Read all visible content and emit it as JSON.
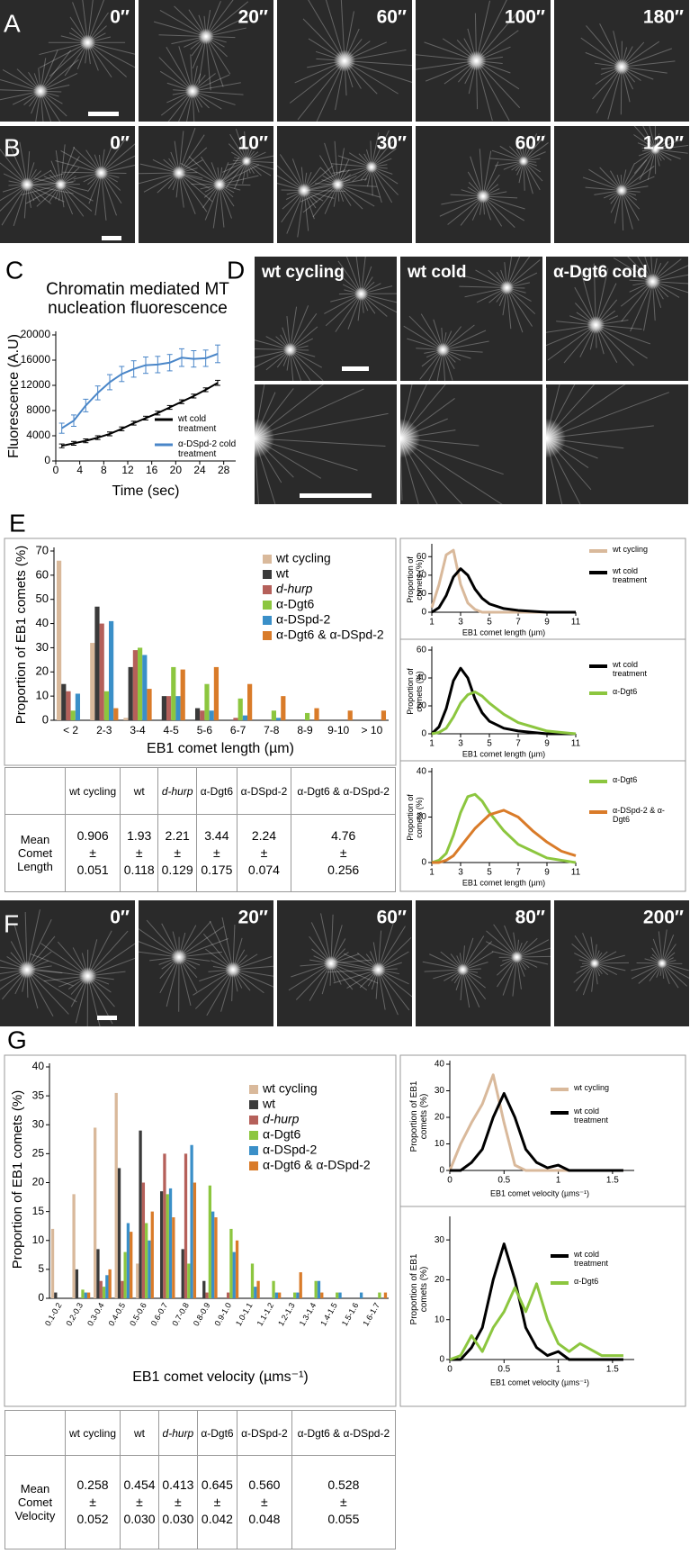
{
  "panel_labels": [
    "A",
    "B",
    "C",
    "D",
    "E",
    "F",
    "G"
  ],
  "timestamps_a": [
    "0″",
    "20″",
    "60″",
    "100″",
    "180″"
  ],
  "timestamps_b": [
    "0″",
    "10″",
    "30″",
    "60″",
    "120″"
  ],
  "timestamps_f": [
    "0″",
    "20″",
    "60″",
    "80″",
    "200″"
  ],
  "panel_d_labels": [
    "wt cycling",
    "wt cold",
    "α-Dgt6 cold"
  ],
  "chart_data": [
    {
      "type": "line",
      "title": "Chromatin mediated MT nucleation fluorescence",
      "x_label": "Time (sec)",
      "y_label": "Fluorescence (A.U)",
      "x": [
        1,
        3,
        5,
        7,
        9,
        11,
        13,
        15,
        17,
        19,
        21,
        23,
        25,
        27
      ],
      "series": [
        {
          "name": "wt cold treatment",
          "color": "#000000",
          "values": [
            2400,
            2800,
            3200,
            3700,
            4300,
            5100,
            6000,
            6800,
            7600,
            8500,
            9400,
            10300,
            11300,
            12400
          ],
          "errors": [
            300,
            300,
            300,
            300,
            300,
            300,
            300,
            300,
            300,
            300,
            300,
            300,
            300,
            400
          ]
        },
        {
          "name": "α-DSpd-2 cold treatment",
          "color": "#4a86c8",
          "values": [
            5200,
            6400,
            8800,
            10800,
            12500,
            13800,
            14600,
            15200,
            15300,
            15600,
            16400,
            16200,
            16300,
            17000
          ],
          "errors": [
            800,
            900,
            1000,
            1100,
            1200,
            1200,
            1300,
            1300,
            1300,
            1300,
            1400,
            1300,
            1300,
            1400
          ]
        }
      ],
      "xlim": [
        0,
        30
      ],
      "xticks": [
        0,
        4,
        8,
        12,
        16,
        20,
        24,
        28
      ],
      "ylim": [
        0,
        20000
      ],
      "yticks": [
        0,
        4000,
        8000,
        12000,
        16000,
        20000
      ]
    },
    {
      "type": "bar",
      "x_label": "EB1 comet length (µm)",
      "y_label": "Proportion of EB1 comets (%)",
      "categories": [
        "< 2",
        "2-3",
        "3-4",
        "4-5",
        "5-6",
        "6-7",
        "7-8",
        "8-9",
        "9-10",
        "> 10"
      ],
      "series": [
        {
          "name": "wt cycling",
          "color": "#d9b99b",
          "values": [
            66,
            32,
            1,
            0,
            0,
            0,
            0,
            0,
            0,
            0
          ]
        },
        {
          "name": "wt",
          "color": "#3a3a3a",
          "values": [
            15,
            47,
            22,
            10,
            5,
            0,
            0,
            0,
            0,
            0
          ]
        },
        {
          "name": "d-hurp",
          "color": "#b5605a",
          "font_style": "italic",
          "values": [
            12,
            40,
            29,
            10,
            4,
            1,
            0,
            0,
            0,
            0
          ]
        },
        {
          "name": "α-Dgt6",
          "color": "#8cc63f",
          "values": [
            4,
            12,
            30,
            22,
            15,
            9,
            4,
            3,
            0,
            0
          ]
        },
        {
          "name": "α-DSpd-2",
          "color": "#3a8fc8",
          "values": [
            11,
            41,
            27,
            10,
            4,
            2,
            1,
            0,
            0,
            0
          ]
        },
        {
          "name": "α-Dgt6 & α-DSpd-2",
          "color": "#d97b29",
          "values": [
            0,
            5,
            13,
            21,
            22,
            15,
            10,
            5,
            4,
            4
          ]
        }
      ],
      "ylim": [
        0,
        70
      ],
      "yticks": [
        0,
        10,
        20,
        30,
        40,
        50,
        60,
        70
      ]
    },
    {
      "type": "line",
      "x_label": "EB1 comet length (µm)",
      "y_label": "Proportion of comets (%)",
      "x": [
        1,
        1.5,
        2,
        2.5,
        3,
        3.5,
        4,
        4.5,
        5,
        6,
        7,
        8,
        9,
        10,
        11
      ],
      "series": [
        {
          "name": "wt cycling",
          "color": "#d9b99b",
          "values": [
            5,
            30,
            62,
            67,
            30,
            10,
            3,
            0,
            0,
            0,
            0,
            0,
            0,
            0,
            0
          ]
        },
        {
          "name": "wt cold treatment",
          "color": "#000000",
          "values": [
            0,
            5,
            18,
            38,
            47,
            40,
            25,
            15,
            9,
            4,
            2,
            1,
            0,
            0,
            0
          ]
        }
      ],
      "xlim": [
        1,
        11
      ],
      "xticks": [
        1,
        3,
        5,
        7,
        9,
        11
      ],
      "ylim": [
        0,
        70
      ],
      "yticks": [
        0,
        20,
        40,
        60
      ]
    },
    {
      "type": "line",
      "x_label": "EB1 comet length (µm)",
      "y_label": "Proportion of comets (%)",
      "x": [
        1,
        1.5,
        2,
        2.5,
        3,
        3.5,
        4,
        4.5,
        5,
        6,
        7,
        8,
        9,
        10,
        11
      ],
      "series": [
        {
          "name": "wt cold treatment",
          "color": "#000000",
          "values": [
            0,
            5,
            18,
            38,
            47,
            40,
            25,
            15,
            9,
            4,
            2,
            1,
            0,
            0,
            0
          ]
        },
        {
          "name": "α-Dgt6",
          "color": "#8cc63f",
          "values": [
            0,
            1,
            4,
            12,
            22,
            28,
            30,
            27,
            22,
            14,
            8,
            5,
            2,
            1,
            0
          ]
        }
      ],
      "xlim": [
        1,
        11
      ],
      "xticks": [
        1,
        3,
        5,
        7,
        9,
        11
      ],
      "ylim": [
        0,
        60
      ],
      "yticks": [
        0,
        20,
        40,
        60
      ]
    },
    {
      "type": "line",
      "x_label": "EB1 comet length (µm)",
      "y_label": "Proportion of comets (%)",
      "x": [
        1,
        1.5,
        2,
        2.5,
        3,
        3.5,
        4,
        4.5,
        5,
        6,
        7,
        8,
        9,
        10,
        11
      ],
      "series": [
        {
          "name": "α-Dgt6",
          "color": "#8cc63f",
          "values": [
            0,
            1,
            4,
            12,
            22,
            29,
            30,
            27,
            22,
            14,
            8,
            5,
            2,
            1,
            0
          ]
        },
        {
          "name": "α-DSpd-2 & α-Dgt6",
          "color": "#d97b29",
          "values": [
            0,
            0,
            1,
            3,
            7,
            11,
            15,
            18,
            21,
            23,
            20,
            14,
            9,
            5,
            3
          ]
        }
      ],
      "xlim": [
        1,
        11
      ],
      "xticks": [
        1,
        3,
        5,
        7,
        9,
        11
      ],
      "ylim": [
        0,
        40
      ],
      "yticks": [
        0,
        20,
        40
      ]
    },
    {
      "type": "bar",
      "x_label": "EB1 comet velocity (µms⁻¹)",
      "y_label": "Proportion of EB1 comets (%)",
      "categories": [
        "0.1-0.2",
        "0.2-0.3",
        "0.3-0.4",
        "0.4-0.5",
        "0.5-0.6",
        "0.6-0.7",
        "0.7-0.8",
        "0.8-0.9",
        "0.9-1.0",
        "1.0-1.1",
        "1.1-1.2",
        "1.2-1.3",
        "1.3-1.4",
        "1.4-1.5",
        "1.5-1.6",
        "1.6-1.7"
      ],
      "series": [
        {
          "name": "wt cycling",
          "color": "#d9b99b",
          "values": [
            12,
            18,
            29.5,
            35.5,
            6,
            0,
            0,
            0,
            0,
            0,
            0,
            0,
            0,
            0,
            0,
            0
          ]
        },
        {
          "name": "wt",
          "color": "#3a3a3a",
          "values": [
            1,
            5,
            8.5,
            22.5,
            29,
            18.5,
            8.5,
            3,
            0,
            0,
            0,
            0,
            0,
            0,
            0,
            0
          ]
        },
        {
          "name": "d-hurp",
          "color": "#b5605a",
          "font_style": "italic",
          "values": [
            0,
            0,
            3,
            3,
            20,
            25,
            25,
            1,
            1,
            0,
            0,
            0,
            0,
            0,
            0,
            0
          ]
        },
        {
          "name": "α-Dgt6",
          "color": "#8cc63f",
          "values": [
            0,
            1.5,
            2,
            8,
            13,
            18,
            6,
            19.5,
            12,
            6,
            3,
            1,
            3,
            1,
            0,
            1
          ]
        },
        {
          "name": "α-DSpd-2",
          "color": "#3a8fc8",
          "values": [
            0,
            1,
            4,
            13,
            10,
            19,
            26.5,
            15,
            8,
            2,
            1,
            1,
            3,
            1,
            1,
            0
          ]
        },
        {
          "name": "α-Dgt6 & α-DSpd-2",
          "color": "#d97b29",
          "values": [
            0,
            1,
            5,
            11.5,
            15,
            14,
            20,
            14,
            10,
            3,
            1,
            4.5,
            1,
            0,
            0,
            1
          ]
        }
      ],
      "ylim": [
        0,
        40
      ],
      "yticks": [
        0,
        5,
        10,
        15,
        20,
        25,
        30,
        35,
        40
      ]
    },
    {
      "type": "line",
      "x_label": "EB1 comet velocity (µms⁻¹)",
      "y_label": "Proportion of EB1 comets (%)",
      "x": [
        0,
        0.1,
        0.2,
        0.3,
        0.4,
        0.5,
        0.6,
        0.7,
        0.8,
        0.9,
        1.0,
        1.1,
        1.2,
        1.4,
        1.6
      ],
      "series": [
        {
          "name": "wt cycling",
          "color": "#d9b99b",
          "values": [
            0,
            10,
            18,
            25,
            36,
            18,
            2,
            0,
            0,
            0,
            0,
            0,
            0,
            0,
            0
          ]
        },
        {
          "name": "wt cold treatment",
          "color": "#000000",
          "values": [
            0,
            0,
            3,
            8,
            20,
            29,
            20,
            8,
            3,
            1,
            2,
            0,
            0,
            0,
            0
          ]
        }
      ],
      "xlim": [
        0,
        1.7
      ],
      "xticks": [
        0,
        0.5,
        1,
        1.5
      ],
      "ylim": [
        0,
        40
      ],
      "yticks": [
        0,
        10,
        20,
        30,
        40
      ]
    },
    {
      "type": "line",
      "x_label": "EB1 comet velocity (µms⁻¹)",
      "y_label": "Proportion of EB1 comets (%)",
      "x": [
        0,
        0.1,
        0.2,
        0.3,
        0.4,
        0.5,
        0.6,
        0.7,
        0.8,
        0.9,
        1.0,
        1.1,
        1.2,
        1.4,
        1.6
      ],
      "series": [
        {
          "name": "wt cold treatment",
          "color": "#000000",
          "values": [
            0,
            0,
            3,
            8,
            20,
            29,
            20,
            8,
            3,
            1,
            2,
            0,
            0,
            0,
            0
          ]
        },
        {
          "name": "α-Dgt6",
          "color": "#8cc63f",
          "values": [
            0,
            1,
            6,
            2,
            8,
            12,
            18,
            12,
            19,
            10,
            4,
            2,
            4,
            1,
            1
          ]
        }
      ],
      "xlim": [
        0,
        1.7
      ],
      "xticks": [
        0,
        0.5,
        1,
        1.5
      ],
      "ylim": [
        0,
        35
      ],
      "yticks": [
        0,
        10,
        20,
        30
      ]
    }
  ],
  "table_e": {
    "header": [
      "wt cycling",
      "wt",
      "d-hurp",
      "α-Dgt6",
      "α-DSpd-2",
      "α-Dgt6 & α-DSpd-2"
    ],
    "row_label": "Mean Comet Length",
    "pm": "±",
    "means": [
      "0.906",
      "1.93",
      "2.21",
      "3.44",
      "2.24",
      "4.76"
    ],
    "sems": [
      "0.051",
      "0.118",
      "0.129",
      "0.175",
      "0.074",
      "0.256"
    ]
  },
  "table_g": {
    "header": [
      "wt cycling",
      "wt",
      "d-hurp",
      "α-Dgt6",
      "α-DSpd-2",
      "α-Dgt6 & α-DSpd-2"
    ],
    "row_label": "Mean Comet Velocity",
    "pm": "±",
    "means": [
      "0.258",
      "0.454",
      "0.413",
      "0.645",
      "0.560",
      "0.528"
    ],
    "sems": [
      "0.052",
      "0.030",
      "0.030",
      "0.042",
      "0.048",
      "0.055"
    ]
  }
}
